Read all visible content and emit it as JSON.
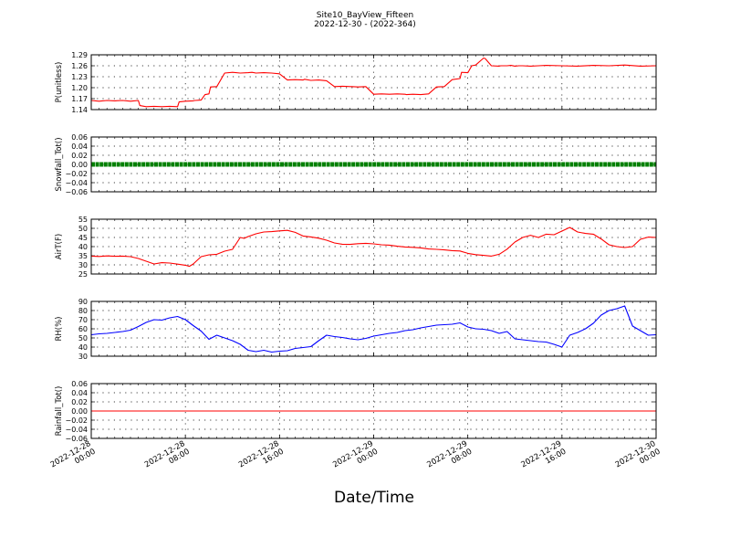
{
  "figure": {
    "title_line1": "Site10_BayView_Fifteen",
    "title_line2": "2022-12-30 - (2022-364)",
    "xlabel": "Date/Time"
  },
  "chart_data": [
    {
      "type": "line",
      "ylabel": "P(unitless)",
      "ylim": [
        1.14,
        1.29
      ],
      "yticks": [
        "1.29",
        "1.26",
        "1.23",
        "1.20",
        "1.17",
        "1.14"
      ],
      "grid": true,
      "series": [
        {
          "color": "#ff0000",
          "x": [
            0,
            1,
            2,
            3,
            4,
            5,
            6,
            6.2,
            7,
            8,
            9,
            10,
            11,
            11.2,
            12,
            13,
            13.2,
            14,
            14.5,
            15,
            15.2,
            16,
            17,
            18,
            19,
            20,
            20.5,
            21,
            22,
            23,
            24,
            25,
            26,
            27,
            27.2,
            28,
            29,
            30,
            31,
            32,
            33,
            33.2,
            34,
            35,
            36,
            37,
            38,
            39,
            40,
            40.2,
            41,
            42,
            43,
            44,
            45,
            46,
            47,
            47.2,
            48,
            48.5,
            49,
            50,
            50.2,
            51,
            52,
            52.2,
            53,
            53.5,
            54,
            54.5,
            55,
            56,
            57,
            58,
            60,
            62,
            64,
            66,
            68,
            70,
            72
          ],
          "y": [
            1.165,
            1.163,
            1.165,
            1.164,
            1.165,
            1.163,
            1.165,
            1.151,
            1.148,
            1.149,
            1.148,
            1.149,
            1.148,
            1.161,
            1.163,
            1.164,
            1.165,
            1.166,
            1.181,
            1.183,
            1.202,
            1.203,
            1.24,
            1.242,
            1.24,
            1.241,
            1.242,
            1.24,
            1.241,
            1.24,
            1.238,
            1.221,
            1.222,
            1.221,
            1.223,
            1.22,
            1.221,
            1.219,
            1.203,
            1.204,
            1.203,
            1.203,
            1.202,
            1.203,
            1.182,
            1.183,
            1.182,
            1.183,
            1.182,
            1.181,
            1.182,
            1.181,
            1.183,
            1.202,
            1.203,
            1.222,
            1.225,
            1.242,
            1.241,
            1.26,
            1.262,
            1.281,
            1.28,
            1.26,
            1.259,
            1.26,
            1.26,
            1.261,
            1.259,
            1.26,
            1.26,
            1.259,
            1.26,
            1.261,
            1.26,
            1.259,
            1.261,
            1.26,
            1.262,
            1.259,
            1.26
          ]
        }
      ]
    },
    {
      "type": "line",
      "ylabel": "Snowfall_Tot()",
      "ylim": [
        -0.06,
        0.06
      ],
      "yticks": [
        "0.06",
        "0.04",
        "0.02",
        "0.00",
        "−0.02",
        "−0.04",
        "−0.06"
      ],
      "grid": true,
      "series": [
        {
          "color": "#008000",
          "marker": "circle",
          "x": [
            0,
            72
          ],
          "y": [
            0,
            0
          ]
        }
      ]
    },
    {
      "type": "line",
      "ylabel": "AirT(F)",
      "ylim": [
        25,
        55
      ],
      "yticks": [
        "55",
        "50",
        "45",
        "40",
        "35",
        "30",
        "25"
      ],
      "grid": true,
      "series": [
        {
          "color": "#ff0000",
          "x": [
            0,
            1,
            2,
            3,
            4,
            5,
            6,
            7,
            8,
            9,
            10,
            11,
            12,
            12.5,
            13,
            14,
            15,
            16,
            17,
            18,
            19,
            19.5,
            20,
            21,
            22,
            23,
            24,
            25,
            26,
            27,
            28,
            29,
            30,
            31,
            32,
            33,
            34,
            35,
            36,
            37,
            38,
            39,
            40,
            41,
            42,
            43,
            44,
            45,
            46,
            47,
            48,
            49,
            50,
            51,
            52,
            53,
            54,
            55,
            56,
            57,
            58,
            59,
            60,
            61,
            62,
            63,
            64,
            65,
            66,
            67,
            68,
            69,
            70,
            71,
            72
          ],
          "y": [
            34.8,
            34.6,
            34.9,
            34.7,
            34.8,
            34.5,
            33.5,
            32.0,
            30.5,
            31.2,
            31.0,
            30.4,
            29.8,
            29.2,
            30.5,
            34.5,
            35.5,
            35.8,
            37.5,
            38.5,
            45.0,
            44.5,
            45.5,
            47.0,
            48.0,
            48.2,
            48.6,
            48.9,
            47.8,
            45.8,
            45.3,
            44.6,
            43.5,
            42.0,
            41.3,
            41.2,
            41.6,
            41.8,
            41.5,
            41.0,
            40.8,
            40.2,
            39.8,
            39.6,
            39.3,
            38.7,
            38.5,
            38.2,
            37.8,
            37.6,
            36.3,
            35.6,
            35.2,
            34.8,
            35.8,
            38.6,
            42.5,
            45.0,
            46.2,
            45.0,
            46.8,
            46.5,
            48.5,
            50.5,
            48.0,
            47.2,
            46.8,
            44.2,
            41.0,
            40.0,
            39.5,
            40.0,
            44.0,
            45.2,
            45.0
          ]
        }
      ]
    },
    {
      "type": "line",
      "ylabel": "RH(%)",
      "ylim": [
        30,
        90
      ],
      "yticks": [
        "90",
        "80",
        "70",
        "60",
        "50",
        "40",
        "30"
      ],
      "grid": true,
      "series": [
        {
          "color": "#0000ff",
          "x": [
            0,
            1,
            2,
            3,
            4,
            5,
            6,
            7,
            8,
            9,
            10,
            11,
            12,
            13,
            14,
            15,
            16,
            17,
            18,
            19,
            20,
            21,
            22,
            23,
            24,
            25,
            26,
            27,
            28,
            29,
            30,
            31,
            32,
            33,
            34,
            35,
            36,
            37,
            38,
            39,
            40,
            41,
            42,
            43,
            44,
            45,
            46,
            47,
            48,
            49,
            50,
            51,
            52,
            53,
            54,
            55,
            56,
            57,
            58,
            59,
            60,
            61,
            62,
            63,
            64,
            65,
            66,
            67,
            68,
            69,
            70,
            71,
            72
          ],
          "y": [
            53.5,
            54.5,
            55.0,
            56.0,
            57.0,
            58.5,
            62.5,
            67.0,
            70.0,
            69.5,
            72.0,
            73.5,
            70.0,
            63.5,
            57.5,
            48.5,
            53.0,
            50.0,
            47.0,
            43.0,
            36.5,
            35.0,
            36.5,
            34.5,
            35.5,
            36.0,
            38.5,
            39.5,
            40.5,
            47.0,
            53.0,
            51.5,
            50.5,
            49.0,
            48.0,
            49.5,
            52.0,
            53.5,
            55.0,
            56.0,
            58.0,
            59.0,
            61.0,
            62.5,
            64.0,
            64.5,
            65.0,
            66.5,
            62.0,
            60.0,
            59.5,
            58.0,
            55.0,
            57.0,
            49.0,
            48.0,
            47.0,
            46.0,
            45.5,
            43.0,
            40.0,
            53.0,
            56.0,
            60.0,
            66.0,
            75.0,
            80.0,
            82.0,
            85.0,
            63.0,
            58.0,
            53.0,
            53.5
          ]
        }
      ]
    },
    {
      "type": "line",
      "ylabel": "Rainfall_Tot()",
      "ylim": [
        -0.06,
        0.06
      ],
      "yticks": [
        "0.06",
        "0.04",
        "0.02",
        "0.00",
        "−0.02",
        "−0.04",
        "−0.06"
      ],
      "grid": true,
      "series": [
        {
          "color": "#ff0000",
          "x": [
            0,
            72
          ],
          "y": [
            0,
            0
          ]
        }
      ]
    }
  ],
  "x_axis": {
    "range_hours": [
      0,
      72
    ],
    "ticks": [
      {
        "hour": 0,
        "line1": "2022-12-28",
        "line2": "00:00"
      },
      {
        "hour": 12,
        "line1": "2022-12-28",
        "line2": "08:00"
      },
      {
        "hour": 24,
        "line1": "2022-12-28",
        "line2": "16:00"
      },
      {
        "hour": 36,
        "line1": "2022-12-29",
        "line2": "00:00"
      },
      {
        "hour": 48,
        "line1": "2022-12-29",
        "line2": "08:00"
      },
      {
        "hour": 60,
        "line1": "2022-12-29",
        "line2": "16:00"
      },
      {
        "hour": 72,
        "line1": "2022-12-30",
        "line2": "00:00"
      }
    ]
  }
}
